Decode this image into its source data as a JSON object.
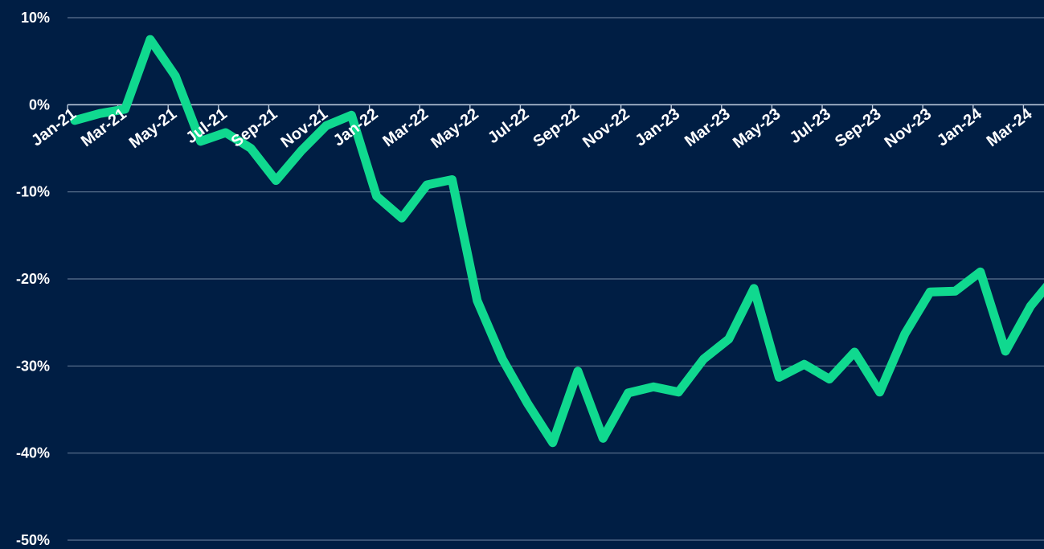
{
  "chart_data": {
    "type": "line",
    "title": "",
    "xlabel": "",
    "ylabel": "",
    "ylim": [
      -50,
      10
    ],
    "y_ticks": [
      10,
      0,
      -10,
      -20,
      -30,
      -40,
      -50
    ],
    "y_tick_labels": [
      "10%",
      "0%",
      "-10%",
      "-20%",
      "-30%",
      "-40%",
      "-50%"
    ],
    "x_tick_labels": [
      "Jan-21",
      "Mar-21",
      "May-21",
      "Jul-21",
      "Sep-21",
      "Nov-21",
      "Jan-22",
      "Mar-22",
      "May-22",
      "Jul-22",
      "Sep-22",
      "Nov-22",
      "Jan-23",
      "Mar-23",
      "May-23",
      "Jul-23",
      "Sep-23",
      "Nov-23",
      "Jan-24",
      "Mar-24"
    ],
    "grid": true,
    "colors": {
      "background": "#001e44",
      "line": "#10d98f",
      "grid": "#5d7390",
      "axis": "#b9c7da",
      "text": "#ffffff"
    },
    "series": [
      {
        "x": [
          "Jan-21",
          "Feb-21",
          "Mar-21",
          "Apr-21",
          "May-21",
          "Jun-21",
          "Jul-21",
          "Aug-21",
          "Sep-21",
          "Oct-21",
          "Nov-21",
          "Dec-21",
          "Jan-22",
          "Feb-22",
          "Mar-22",
          "Apr-22",
          "May-22",
          "Jun-22",
          "Jul-22",
          "Aug-22",
          "Sep-22",
          "Oct-22",
          "Nov-22",
          "Dec-22",
          "Jan-23",
          "Feb-23",
          "Mar-23",
          "Apr-23",
          "May-23",
          "Jun-23",
          "Jul-23",
          "Aug-23",
          "Sep-23",
          "Oct-23",
          "Nov-23",
          "Dec-23",
          "Jan-24",
          "Feb-24",
          "Mar-24",
          "Apr-24"
        ],
        "values": [
          -1.8,
          -1.0,
          -0.5,
          7.5,
          3.3,
          -4.2,
          -3.2,
          -5.0,
          -8.7,
          -5.3,
          -2.4,
          -1.2,
          -10.5,
          -13.0,
          -9.2,
          -8.6,
          -22.5,
          -29.2,
          -34.3,
          -38.8,
          -30.6,
          -38.3,
          -33.1,
          -32.4,
          -33.0,
          -29.2,
          -26.9,
          -21.1,
          -31.3,
          -29.8,
          -31.5,
          -28.4,
          -33.0,
          -26.3,
          -21.5,
          -21.4,
          -19.2,
          -28.3,
          -23.1,
          -19.6
        ]
      }
    ]
  }
}
